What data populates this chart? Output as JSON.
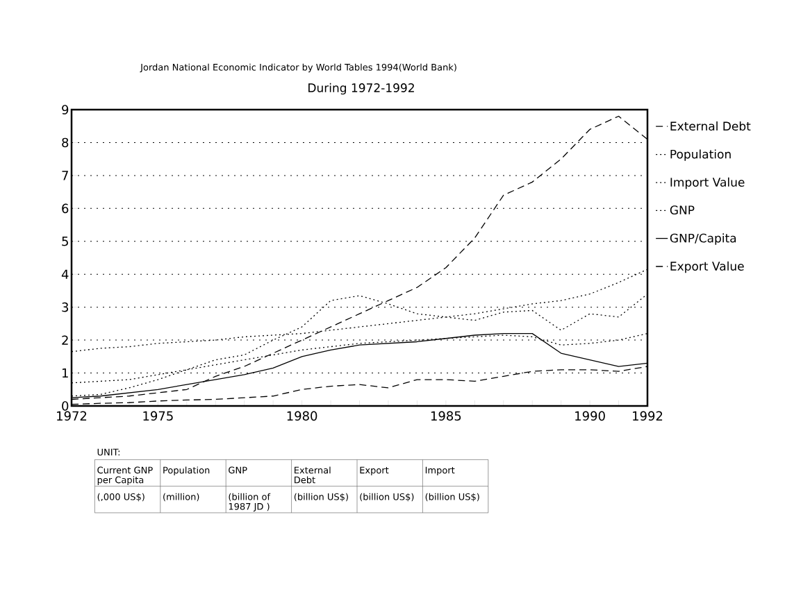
{
  "chart_data": {
    "type": "line",
    "title": "Jordan National Economic Indicator by World Tables 1994(World Bank)",
    "subtitle": "During 1972-1992",
    "x": [
      1972,
      1973,
      1974,
      1975,
      1976,
      1977,
      1978,
      1979,
      1980,
      1981,
      1982,
      1983,
      1984,
      1985,
      1986,
      1987,
      1988,
      1989,
      1990,
      1991,
      1992
    ],
    "series": [
      {
        "name": "External Debt",
        "color": "#000000",
        "line_style": "dashed",
        "values": [
          0.2,
          0.25,
          0.3,
          0.4,
          0.5,
          0.9,
          1.2,
          1.6,
          2.0,
          2.4,
          2.8,
          3.2,
          3.6,
          4.2,
          5.1,
          6.4,
          6.8,
          7.5,
          8.4,
          8.8,
          8.1
        ]
      },
      {
        "name": "Population",
        "color": "#000000",
        "line_style": "dotted",
        "values": [
          1.65,
          1.75,
          1.8,
          1.9,
          1.95,
          2.0,
          2.1,
          2.15,
          2.2,
          2.3,
          2.4,
          2.5,
          2.6,
          2.7,
          2.8,
          2.95,
          3.1,
          3.2,
          3.4,
          3.75,
          4.15
        ]
      },
      {
        "name": "Import Value",
        "color": "#000000",
        "line_style": "dotted",
        "values": [
          0.3,
          0.35,
          0.55,
          0.8,
          1.1,
          1.4,
          1.55,
          2.0,
          2.4,
          3.2,
          3.35,
          3.1,
          2.8,
          2.7,
          2.6,
          2.85,
          2.9,
          2.3,
          2.8,
          2.7,
          3.4
        ]
      },
      {
        "name": "GNP",
        "color": "#000000",
        "line_style": "dotted",
        "values": [
          0.7,
          0.75,
          0.8,
          0.95,
          1.1,
          1.25,
          1.4,
          1.55,
          1.7,
          1.8,
          1.9,
          1.95,
          2.0,
          2.05,
          2.1,
          2.15,
          2.1,
          1.85,
          1.9,
          2.0,
          2.2
        ]
      },
      {
        "name": "GNP/Capita",
        "color": "#000000",
        "line_style": "solid",
        "values": [
          0.25,
          0.3,
          0.4,
          0.5,
          0.65,
          0.8,
          0.95,
          1.15,
          1.5,
          1.7,
          1.85,
          1.9,
          1.95,
          2.05,
          2.15,
          2.2,
          2.2,
          1.6,
          1.4,
          1.2,
          1.3
        ]
      },
      {
        "name": "Export Value",
        "color": "#000000",
        "line_style": "dashed",
        "values": [
          0.05,
          0.08,
          0.1,
          0.15,
          0.18,
          0.2,
          0.25,
          0.3,
          0.5,
          0.6,
          0.65,
          0.55,
          0.8,
          0.8,
          0.75,
          0.9,
          1.05,
          1.1,
          1.1,
          1.05,
          1.2
        ]
      }
    ],
    "xlim": [
      1972,
      1992
    ],
    "xticks": [
      1972,
      {
        "value": 1973,
        "label": null
      },
      {
        "value": 1974,
        "label": null
      },
      1975,
      {
        "value": 1976,
        "label": null
      },
      {
        "value": 1977,
        "label": null
      },
      {
        "value": 1978,
        "label": null
      },
      {
        "value": 1979,
        "label": null
      },
      1980,
      {
        "value": 1981,
        "label": null
      },
      {
        "value": 1982,
        "label": null
      },
      {
        "value": 1983,
        "label": null
      },
      {
        "value": 1984,
        "label": null
      },
      1985,
      {
        "value": 1986,
        "label": null
      },
      {
        "value": 1987,
        "label": null
      },
      {
        "value": 1988,
        "label": null
      },
      {
        "value": 1989,
        "label": null
      },
      1990,
      {
        "value": 1991,
        "label": null
      },
      1992
    ],
    "ylim": [
      0,
      9
    ],
    "yticks": [
      0,
      1,
      2,
      3,
      4,
      5,
      6,
      7,
      8,
      9
    ],
    "grid": "y",
    "legend": "right",
    "annotations": [
      "UNIT:",
      "Current GNP per Capita",
      "Population",
      "GNP",
      "External Debt",
      "Export",
      "Import",
      "(,000 US$)",
      "(million)",
      "(billion of 1987 JD )",
      "(billion US$)",
      "(billion US$)",
      "(billion US$)"
    ]
  }
}
